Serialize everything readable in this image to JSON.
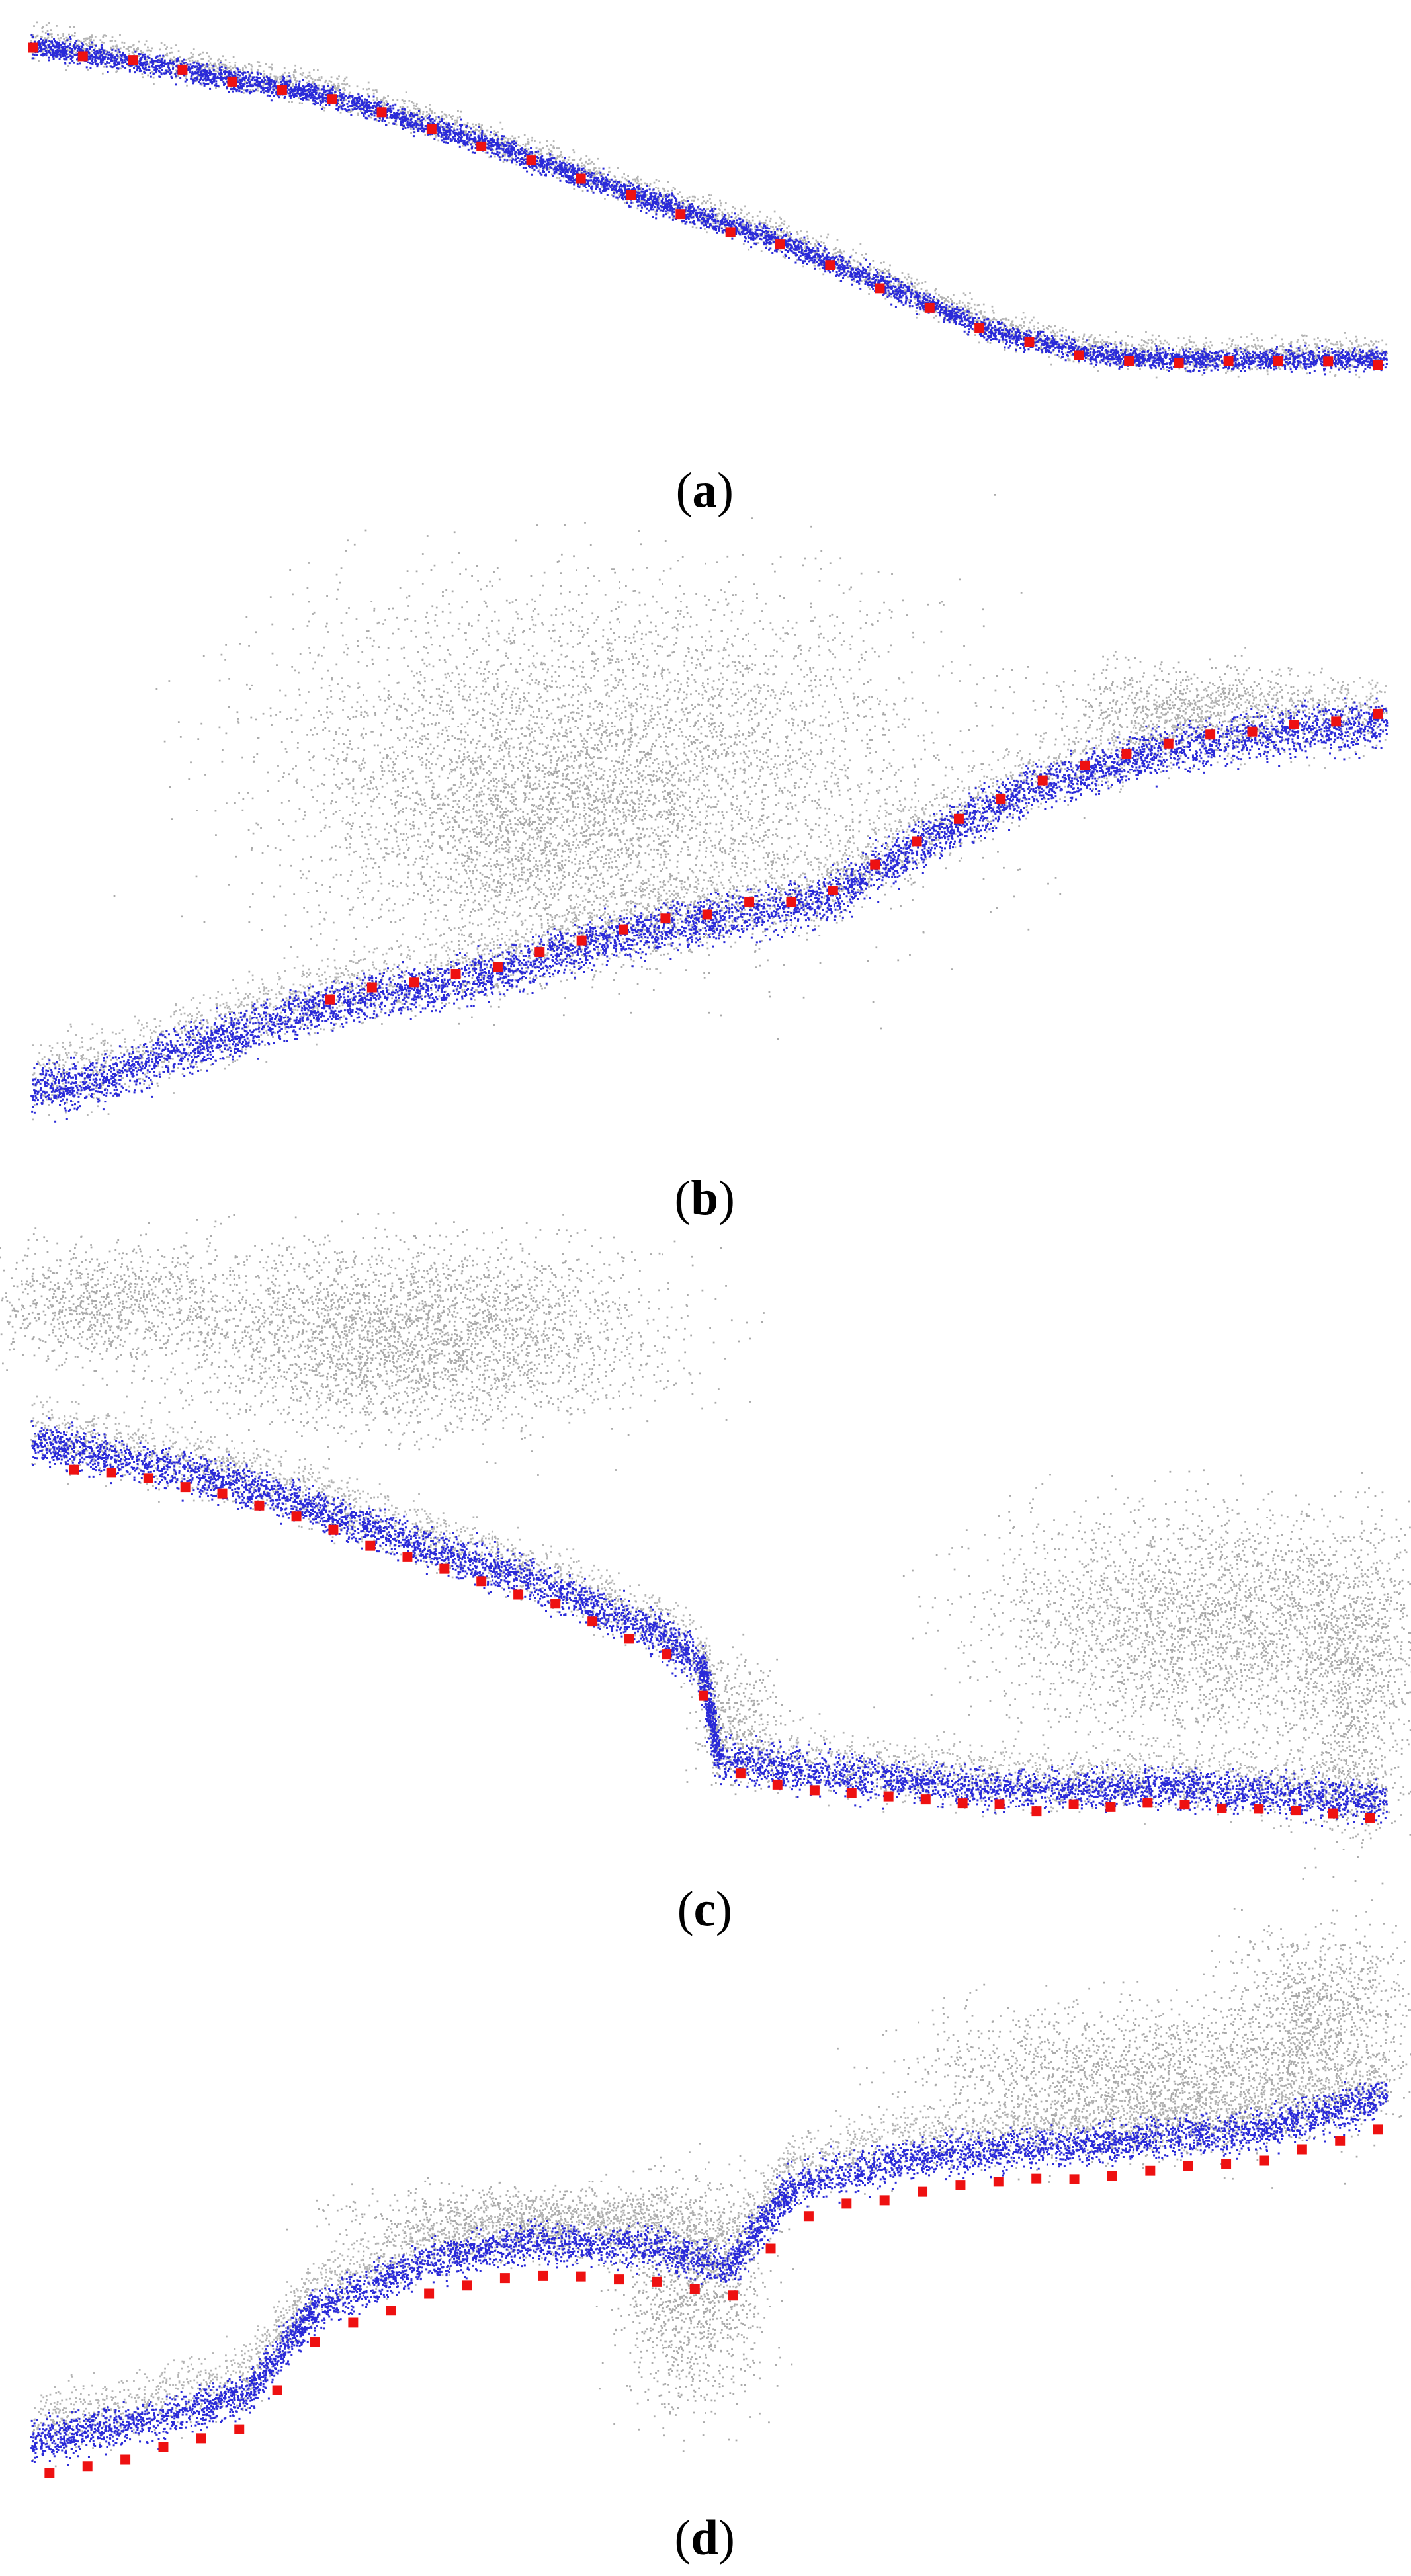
{
  "panels": [
    {
      "caption": {
        "open": "(",
        "letter": "a",
        "close": ")"
      }
    },
    {
      "caption": {
        "open": "(",
        "letter": "b",
        "close": ")"
      }
    },
    {
      "caption": {
        "open": "(",
        "letter": "c",
        "close": ")"
      }
    },
    {
      "caption": {
        "open": "(",
        "letter": "d",
        "close": ")"
      }
    }
  ]
}
